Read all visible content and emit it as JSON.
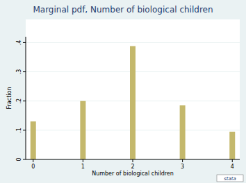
{
  "chart_data": {
    "type": "bar",
    "title": "Marginal pdf, Number of biological children",
    "x_label": "Number of biological children",
    "y_label": "Fraction",
    "x": [
      0,
      1,
      2,
      3,
      4
    ],
    "values": [
      0.13,
      0.2,
      0.388,
      0.185,
      0.095
    ],
    "color": "#c4b86c",
    "xlim": [
      -0.15,
      4.15
    ],
    "xticks": [
      0,
      1,
      2,
      3,
      4
    ],
    "ylim": [
      0,
      0.42
    ],
    "yticks": [
      0,
      {
        "value": 0.1,
        "label": ".1"
      },
      {
        "value": 0.2,
        "label": ".2"
      },
      {
        "value": 0.3,
        "label": ".3"
      },
      {
        "value": 0.4,
        "label": ".4"
      }
    ],
    "grid": true,
    "annotations": [
      "stata"
    ]
  }
}
